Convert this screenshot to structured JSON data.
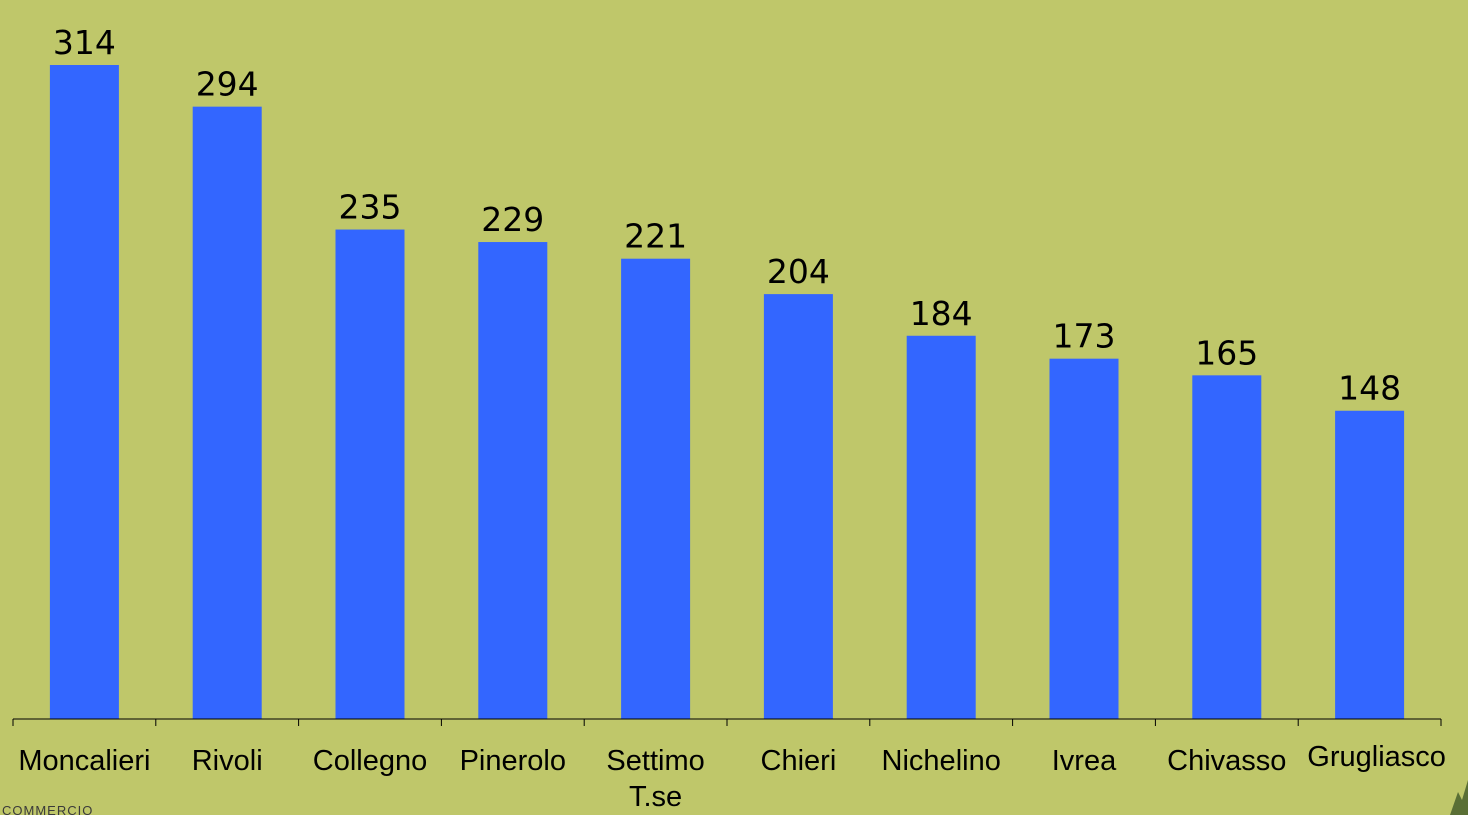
{
  "chart_data": {
    "type": "bar",
    "title": "",
    "xlabel": "",
    "ylabel": "",
    "categories": [
      "Moncalieri",
      "Rivoli",
      "Collegno",
      "Pinerolo",
      "Settimo T.se",
      "Chieri",
      "Nichelino",
      "Ivrea",
      "Chivasso",
      "Grugliasco"
    ],
    "values": [
      314,
      294,
      235,
      229,
      221,
      204,
      184,
      173,
      165,
      148
    ],
    "ylim": [
      0,
      314
    ],
    "grid": false,
    "legend": "none",
    "colors": {
      "bar": "#3366ff",
      "background": "#bfc76a",
      "axis": "#000000",
      "text": "#000000"
    }
  },
  "footer": {
    "logo_text": "COMMERCIO"
  }
}
